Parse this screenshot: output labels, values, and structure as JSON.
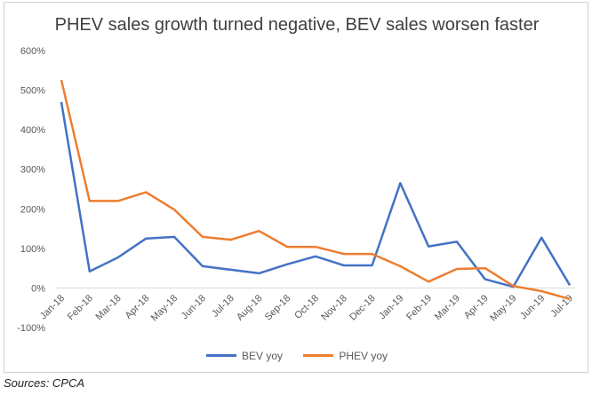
{
  "chart_data": {
    "type": "line",
    "title": "PHEV sales growth turned negative, BEV sales worsen faster",
    "categories": [
      "Jan-18",
      "Feb-18",
      "Mar-18",
      "Apr-18",
      "May-18",
      "Jun-18",
      "Jul-18",
      "Aug-18",
      "Sep-18",
      "Oct-18",
      "Nov-18",
      "Dec-18",
      "Jan-19",
      "Feb-19",
      "Mar-19",
      "Apr-19",
      "May-19",
      "Jun-19",
      "Jul-19"
    ],
    "series": [
      {
        "name": "BEV yoy",
        "color": "#4472C4",
        "values": [
          470,
          42,
          77,
          125,
          129,
          55,
          46,
          37,
          60,
          80,
          57,
          57,
          265,
          105,
          117,
          22,
          3,
          127,
          7
        ]
      },
      {
        "name": "PHEV yoy",
        "color": "#ED7D31",
        "values": [
          526,
          220,
          220,
          242,
          198,
          129,
          122,
          144,
          104,
          104,
          86,
          86,
          55,
          16,
          48,
          50,
          5,
          -8,
          -28
        ]
      }
    ],
    "yticks": [
      "-100%",
      "0%",
      "100%",
      "200%",
      "300%",
      "400%",
      "500%",
      "600%"
    ],
    "ylim": [
      -100,
      600
    ],
    "grid": false,
    "legend": "bottom"
  },
  "source_note": "Sources: CPCA"
}
